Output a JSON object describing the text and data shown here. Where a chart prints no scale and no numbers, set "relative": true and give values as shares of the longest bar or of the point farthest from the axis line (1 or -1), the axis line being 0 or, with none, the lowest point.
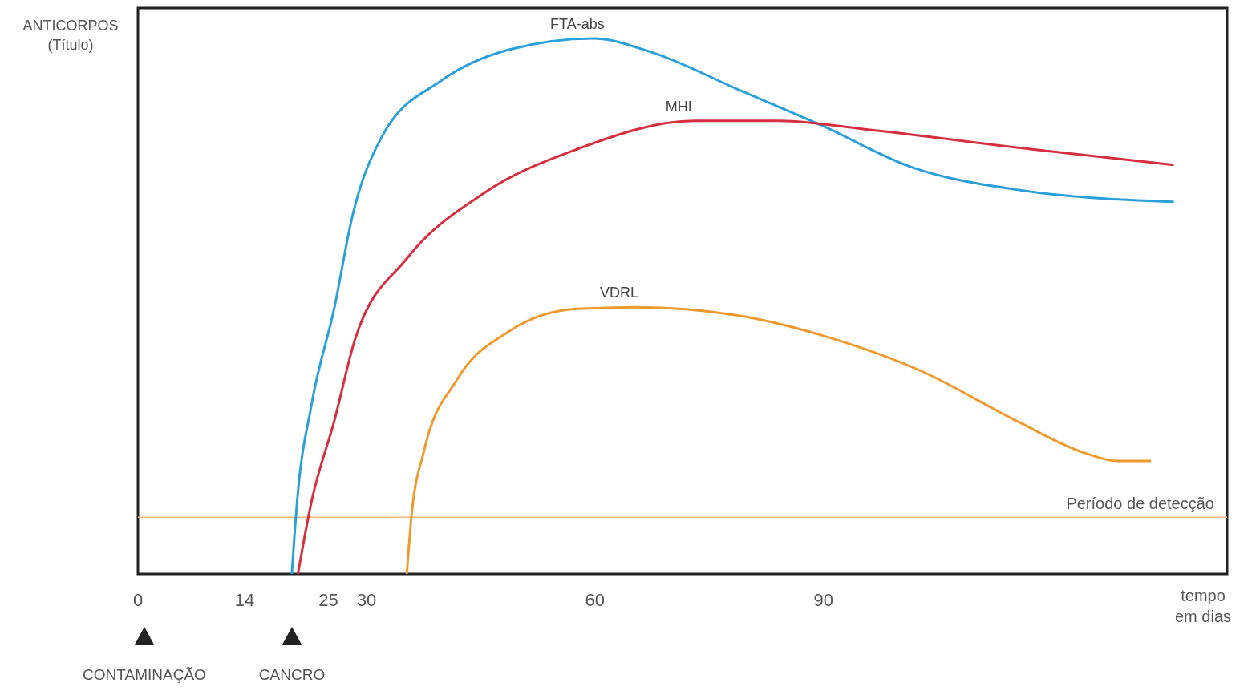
{
  "chart_data": {
    "type": "line",
    "relative": true,
    "ylabel": "ANTICORPOS (Título)",
    "xlabel": "tempo em dias",
    "xlim": [
      0,
      143
    ],
    "xticks": [
      0,
      14,
      25,
      30,
      60,
      90
    ],
    "series": [
      {
        "name": "FTA-abs",
        "color": "#2b9fd9",
        "x": [
          20.2,
          20.9,
          22.8,
          25.8,
          28.1,
          32,
          39.8,
          48.7,
          59.8,
          67.5,
          78.6,
          89.7,
          101.9,
          115.2,
          136
        ],
        "values": [
          0,
          0.136,
          0.317,
          0.498,
          0.665,
          0.816,
          0.921,
          0.979,
          1,
          0.974,
          0.906,
          0.838,
          0.758,
          0.718,
          0.695
        ]
      },
      {
        "name": "MHI",
        "color": "#d42e3f",
        "x": [
          21,
          22.8,
          25.8,
          28.5,
          35.3,
          45.3,
          57.6,
          73.1,
          84.2,
          95.2,
          117.4,
          136
        ],
        "values": [
          0,
          0.136,
          0.287,
          0.438,
          0.589,
          0.71,
          0.793,
          0.846,
          0.846,
          0.831,
          0.793,
          0.764
        ]
      },
      {
        "name": "VDRL",
        "color": "#ee9a2e",
        "x": [
          35.3,
          35.9,
          37.5,
          41.9,
          48.7,
          57.6,
          65.3,
          78.6,
          89.7,
          103,
          115.2,
          124.1,
          128.6,
          133
        ],
        "values": [
          0,
          0.106,
          0.227,
          0.363,
          0.453,
          0.495,
          0.498,
          0.483,
          0.446,
          0.378,
          0.287,
          0.227,
          0.211,
          0.211
        ]
      }
    ],
    "ref_lines": [
      {
        "axis": "y",
        "value": 0.106,
        "label": "Período de detecção",
        "color": "#f5b87a"
      }
    ],
    "annotations": [
      "CONTAMINAÇÃO",
      "CANCRO"
    ]
  }
}
